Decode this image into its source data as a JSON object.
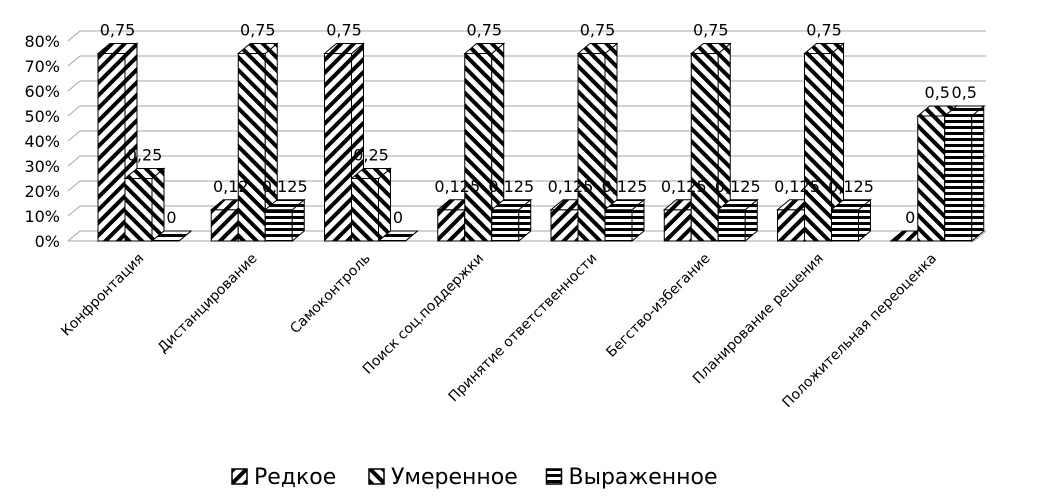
{
  "chart_data": {
    "type": "bar",
    "categories": [
      "Конфронтация",
      "Дистанцирование",
      "Самоконтроль",
      "Поиск соц.поддержки",
      "Принятие ответственности",
      "Бегство-избегание",
      "Планирование решения",
      "Положительная переоценка"
    ],
    "series": [
      {
        "name": "Редкое",
        "values": [
          0.75,
          0.125,
          0.75,
          0.125,
          0.125,
          0.125,
          0.125,
          0
        ],
        "labels": [
          "0,75",
          "0,12",
          "0,75",
          "0,125",
          "0,125",
          "0,125",
          "0,125",
          "0"
        ],
        "pattern": "diag-up"
      },
      {
        "name": "Умеренное",
        "values": [
          0.25,
          0.75,
          0.25,
          0.75,
          0.75,
          0.75,
          0.75,
          0.5
        ],
        "labels": [
          "0,25",
          "0,75",
          "0,25",
          "0,75",
          "0,75",
          "0,75",
          "0,75",
          "0,5"
        ],
        "pattern": "diag-down"
      },
      {
        "name": "Выраженное",
        "values": [
          0,
          0.125,
          0,
          0.125,
          0.125,
          0.125,
          0.125,
          0.5
        ],
        "labels": [
          "0",
          "0,125",
          "0",
          "0,125",
          "0,125",
          "0,125",
          "0,125",
          "0,5"
        ],
        "pattern": "horizontal"
      }
    ],
    "yticks": [
      "0%",
      "10%",
      "20%",
      "30%",
      "40%",
      "50%",
      "60%",
      "70%",
      "80%"
    ],
    "ylim": [
      0,
      0.8
    ],
    "grid": true,
    "legend": "bottom",
    "style": "3d-clustered-column",
    "colors": {
      "ink": "#000000",
      "grid": "#a6a6a6",
      "fill": "#ffffff"
    }
  }
}
